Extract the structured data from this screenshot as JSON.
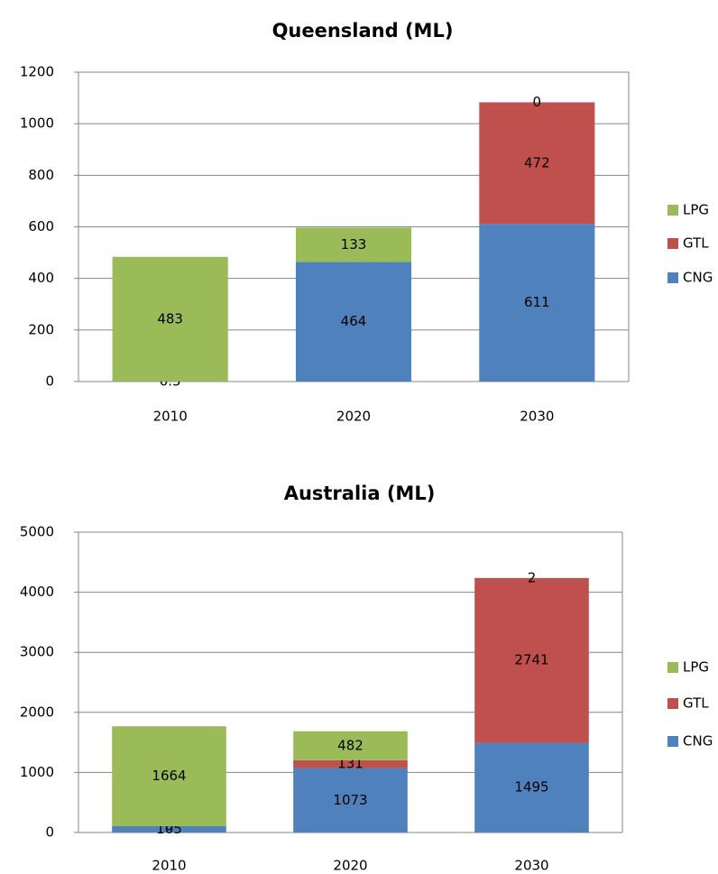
{
  "chart_data": [
    {
      "type": "stacked_bar",
      "title": "Queensland (ML)",
      "categories": [
        "2010",
        "2020",
        "2030"
      ],
      "series": [
        {
          "name": "CNG",
          "color": "#4f81bd",
          "values": [
            0.5,
            464,
            611
          ]
        },
        {
          "name": "GTL",
          "color": "#c0504d",
          "values": [
            null,
            null,
            472
          ]
        },
        {
          "name": "LPG",
          "color": "#9bbb59",
          "values": [
            483,
            133,
            0
          ]
        }
      ],
      "ylim": [
        0,
        1200
      ],
      "yticks": [
        0,
        200,
        400,
        600,
        800,
        1000,
        1200
      ],
      "grid": true,
      "legend": "right"
    },
    {
      "type": "stacked_bar",
      "title": "Australia (ML)",
      "categories": [
        "2010",
        "2020",
        "2030"
      ],
      "series": [
        {
          "name": "CNG",
          "color": "#4f81bd",
          "values": [
            105,
            1073,
            1495
          ]
        },
        {
          "name": "GTL",
          "color": "#c0504d",
          "values": [
            0,
            131,
            2741
          ]
        },
        {
          "name": "LPG",
          "color": "#9bbb59",
          "values": [
            1664,
            482,
            2
          ]
        }
      ],
      "ylim": [
        0,
        5000
      ],
      "yticks": [
        0,
        1000,
        2000,
        3000,
        4000,
        5000
      ],
      "grid": true,
      "legend": "right"
    }
  ]
}
